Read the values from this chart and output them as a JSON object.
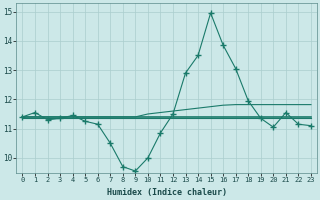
{
  "xlabel": "Humidex (Indice chaleur)",
  "x": [
    0,
    1,
    2,
    3,
    4,
    5,
    6,
    7,
    8,
    9,
    10,
    11,
    12,
    13,
    14,
    15,
    16,
    17,
    18,
    19,
    20,
    21,
    22,
    23
  ],
  "line_peak": [
    11.4,
    11.55,
    11.3,
    11.35,
    11.45,
    11.25,
    11.15,
    10.5,
    9.7,
    9.55,
    10.0,
    10.85,
    11.5,
    12.9,
    13.5,
    14.95,
    13.85,
    13.05,
    11.95,
    11.35,
    11.05,
    11.55,
    11.15,
    11.1
  ],
  "line_flat_top": [
    11.4,
    11.4,
    11.4,
    11.4,
    11.4,
    11.4,
    11.4,
    11.4,
    11.4,
    11.4,
    11.5,
    11.55,
    11.6,
    11.65,
    11.7,
    11.75,
    11.8,
    11.82,
    11.82,
    11.82,
    11.82,
    11.82,
    11.82,
    11.82
  ],
  "line_flat_mid": [
    11.4,
    11.4,
    11.4,
    11.4,
    11.4,
    11.4,
    11.4,
    11.4,
    11.4,
    11.4,
    11.4,
    11.4,
    11.4,
    11.4,
    11.4,
    11.4,
    11.4,
    11.4,
    11.4,
    11.4,
    11.4,
    11.4,
    11.4,
    11.4
  ],
  "line_flat_bot": [
    11.35,
    11.35,
    11.35,
    11.35,
    11.35,
    11.35,
    11.35,
    11.35,
    11.35,
    11.35,
    11.35,
    11.35,
    11.35,
    11.35,
    11.35,
    11.35,
    11.35,
    11.35,
    11.35,
    11.35,
    11.35,
    11.35,
    11.35,
    11.35
  ],
  "color": "#1a7a6a",
  "bg_color": "#cce8e8",
  "grid_color": "#aacece",
  "ylim": [
    9.5,
    15.3
  ],
  "yticks": [
    10,
    11,
    12,
    13,
    14,
    15
  ],
  "xticks": [
    0,
    1,
    2,
    3,
    4,
    5,
    6,
    7,
    8,
    9,
    10,
    11,
    12,
    13,
    14,
    15,
    16,
    17,
    18,
    19,
    20,
    21,
    22,
    23
  ]
}
